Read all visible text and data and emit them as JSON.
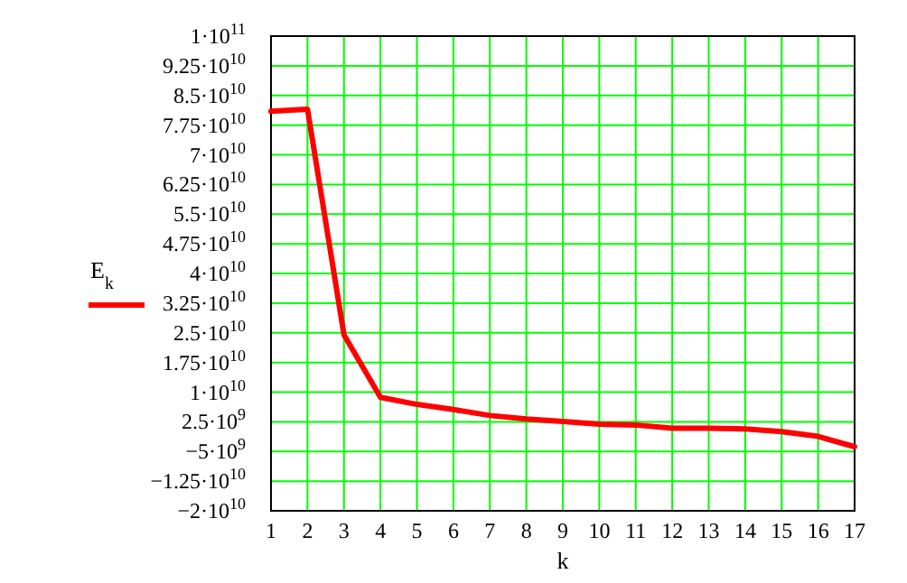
{
  "chart_data": {
    "type": "line",
    "xlabel": "k",
    "x": [
      1,
      2,
      3,
      4,
      5,
      6,
      7,
      8,
      9,
      10,
      11,
      12,
      13,
      14,
      15,
      16,
      17
    ],
    "series": [
      {
        "name": "E$_{k}$",
        "color": "#ff0000",
        "values": [
          81000000000.0,
          81500000000.0,
          24500000000.0,
          8700000000.0,
          6900000000.0,
          5600000000.0,
          4100000000.0,
          3200000000.0,
          2600000000.0,
          1900000000.0,
          1700000000.0,
          900000000.0,
          900000000.0,
          700000000.0,
          0,
          -1200000000.0,
          -3800000000.0
        ]
      }
    ],
    "xlim": [
      1,
      17
    ],
    "xticks": [
      1,
      2,
      3,
      4,
      5,
      6,
      7,
      8,
      9,
      10,
      11,
      12,
      13,
      14,
      15,
      16,
      17
    ],
    "ylim": [
      -20000000000.0,
      100000000000.0
    ],
    "yticks": [
      {
        "value": 100000000000.0,
        "label": "1·10$^{11}$"
      },
      {
        "value": 92500000000.0,
        "label": "9.25·10$^{10}$"
      },
      {
        "value": 85000000000.0,
        "label": "8.5·10$^{10}$"
      },
      {
        "value": 77500000000.0,
        "label": "7.75·10$^{10}$"
      },
      {
        "value": 70000000000.0,
        "label": "7·10$^{10}$"
      },
      {
        "value": 62500000000.0,
        "label": "6.25·10$^{10}$"
      },
      {
        "value": 55000000000.0,
        "label": "5.5·10$^{10}$"
      },
      {
        "value": 47500000000.0,
        "label": "4.75·10$^{10}$"
      },
      {
        "value": 40000000000.0,
        "label": "4·10$^{10}$"
      },
      {
        "value": 32500000000.0,
        "label": "3.25·10$^{10}$"
      },
      {
        "value": 25000000000.0,
        "label": "2.5·10$^{10}$"
      },
      {
        "value": 17500000000.0,
        "label": "1.75·10$^{10}$"
      },
      {
        "value": 10000000000.0,
        "label": "1·10$^{10}$"
      },
      {
        "value": 2500000000.0,
        "label": "2.5·10$^{9}$"
      },
      {
        "value": -5000000000.0,
        "label": "−5·10$^{9}$"
      },
      {
        "value": -12500000000.0,
        "label": "−1.25·10$^{10}$"
      },
      {
        "value": -20000000000.0,
        "label": "−2·10$^{10}$"
      }
    ],
    "grid": true,
    "legend": "left",
    "marker": "none",
    "line_style": "solid"
  }
}
